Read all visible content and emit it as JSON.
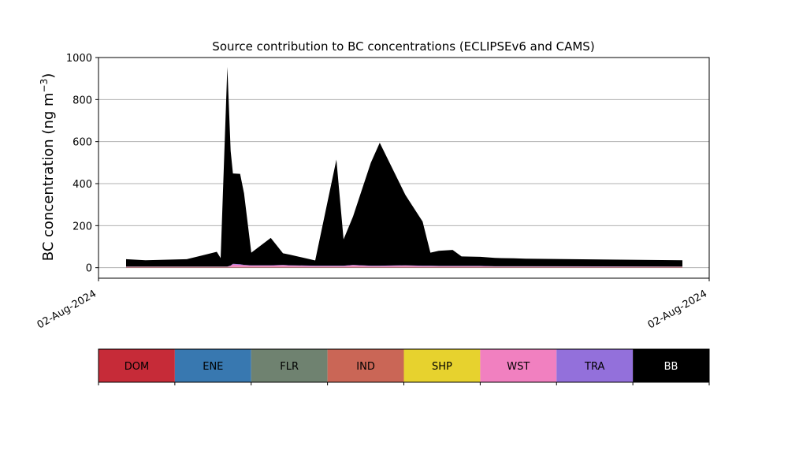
{
  "chart_data": {
    "type": "area",
    "title": "Source contribution to BC concentrations (ECLIPSEv6 and CAMS)",
    "xlabel": "",
    "ylabel_main": "BC concentration (ng m",
    "ylabel_sup": "−3",
    "ylabel_close": ")",
    "ylim": [
      -50,
      1000
    ],
    "yticks": [
      0,
      200,
      400,
      600,
      800,
      1000
    ],
    "xticks": [
      "02-Aug-2024",
      "02-Aug-2024"
    ],
    "grid": "horizontal",
    "stacked": true,
    "x": [
      0.0,
      0.035,
      0.109,
      0.163,
      0.17,
      0.182,
      0.188,
      0.192,
      0.205,
      0.212,
      0.225,
      0.26,
      0.282,
      0.295,
      0.34,
      0.378,
      0.391,
      0.408,
      0.44,
      0.456,
      0.502,
      0.533,
      0.547,
      0.562,
      0.587,
      0.603,
      0.637,
      0.663,
      0.697,
      0.718,
      1.0
    ],
    "series": [
      {
        "name": "DOM",
        "color": "#c62b38",
        "values": [
          1,
          1,
          1,
          1,
          1,
          1,
          1,
          1,
          1,
          1,
          1,
          1,
          1,
          1,
          1,
          1,
          1,
          1,
          1,
          1,
          1,
          1,
          1,
          1,
          1,
          1,
          1,
          1,
          1,
          1,
          1
        ]
      },
      {
        "name": "ENE",
        "color": "#3878b0",
        "values": [
          0.5,
          0.5,
          0.5,
          0.5,
          0.5,
          0.5,
          0.5,
          0.5,
          0.5,
          0.5,
          0.5,
          0.5,
          0.5,
          0.5,
          0.5,
          0.5,
          0.5,
          0.5,
          0.5,
          0.5,
          0.5,
          0.5,
          0.5,
          0.5,
          0.5,
          0.5,
          0.5,
          0.5,
          0.5,
          0.5,
          0.5
        ]
      },
      {
        "name": "FLR",
        "color": "#6f8270",
        "values": [
          0.5,
          0.5,
          0.5,
          0.5,
          0.5,
          0.5,
          0.5,
          0.5,
          0.5,
          0.5,
          0.5,
          0.5,
          0.5,
          0.5,
          0.5,
          0.5,
          0.5,
          0.5,
          0.5,
          0.5,
          0.5,
          0.5,
          0.5,
          0.5,
          0.5,
          0.5,
          0.5,
          0.5,
          0.5,
          0.5,
          0.5
        ]
      },
      {
        "name": "IND",
        "color": "#ca6656",
        "values": [
          1,
          1,
          1,
          1,
          1,
          1,
          1,
          1,
          1,
          1,
          1,
          1,
          1,
          1,
          1,
          1,
          1,
          1,
          1,
          1,
          1,
          1,
          1,
          1,
          1,
          1,
          1,
          1,
          1,
          1,
          1
        ]
      },
      {
        "name": "SHP",
        "color": "#e7d22e",
        "values": [
          0.5,
          0.5,
          0.5,
          0.5,
          0.5,
          0.5,
          0.5,
          0.5,
          0.5,
          0.5,
          0.5,
          0.5,
          0.5,
          0.5,
          0.5,
          0.5,
          0.5,
          0.5,
          0.5,
          0.5,
          0.5,
          0.5,
          0.5,
          0.5,
          0.5,
          0.5,
          0.5,
          0.5,
          0.5,
          0.5,
          0.5
        ]
      },
      {
        "name": "WST",
        "color": "#f180c0",
        "values": [
          1,
          1,
          1,
          1,
          1,
          1,
          5,
          12,
          10,
          8,
          6,
          6,
          8,
          6,
          4,
          4,
          4,
          8,
          4,
          4,
          6,
          4,
          4,
          3,
          3,
          3,
          3,
          2,
          2,
          2,
          1
        ]
      },
      {
        "name": "TRA",
        "color": "#9370db",
        "values": [
          1,
          1,
          1,
          1,
          1,
          1,
          2,
          3,
          3,
          2,
          2,
          2,
          2,
          2,
          2,
          2,
          2,
          2,
          2,
          2,
          2,
          2,
          2,
          2,
          2,
          2,
          2,
          1,
          1,
          1,
          1
        ]
      },
      {
        "name": "BB",
        "color": "#000000",
        "values": [
          35,
          30,
          35,
          70,
          40,
          950,
          545,
          430,
          430,
          340,
          60,
          130,
          55,
          50,
          25,
          505,
          125,
          230,
          490,
          585,
          335,
          210,
          62,
          72,
          76,
          45,
          43,
          40,
          38,
          36,
          30
        ]
      }
    ]
  }
}
